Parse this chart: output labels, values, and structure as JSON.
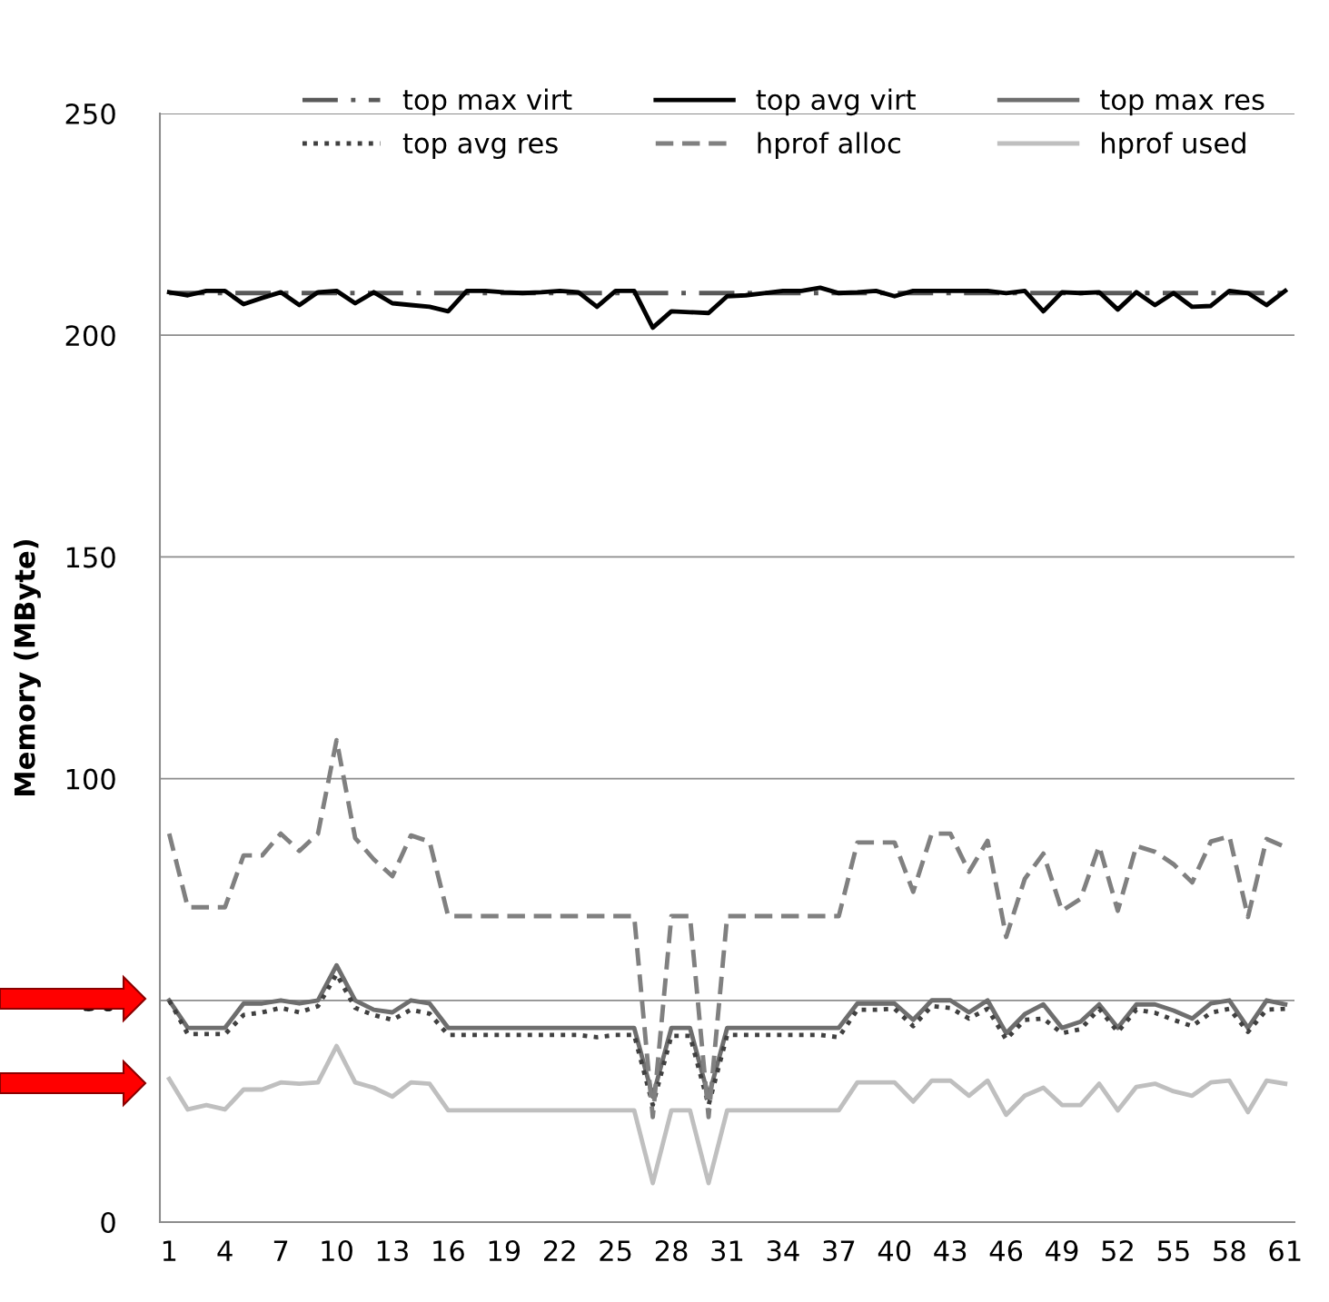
{
  "chart_data": {
    "type": "line",
    "ylabel": "Memory (MByte)",
    "categories": [
      "1",
      null,
      null,
      "4",
      null,
      null,
      "7",
      null,
      null,
      "10",
      null,
      null,
      "13",
      null,
      null,
      "16",
      null,
      null,
      "19",
      null,
      null,
      "22",
      null,
      null,
      "25",
      null,
      null,
      "28",
      null,
      null,
      "31",
      null,
      null,
      "34",
      null,
      null,
      "37",
      null,
      null,
      "40",
      null,
      null,
      "43",
      null,
      null,
      "46",
      null,
      null,
      "49",
      null,
      null,
      "52",
      null,
      null,
      "55",
      null,
      null,
      "58",
      null,
      null,
      "61"
    ],
    "ylim": [
      0,
      250
    ],
    "yticks": [
      0,
      50,
      100,
      150,
      200,
      250
    ],
    "grid": "y",
    "legend": "top",
    "series": [
      {
        "name": "top max virt",
        "color": "#595959",
        "line_style": "dashdot",
        "values": [
          209.5,
          209.5,
          209.5,
          209.5,
          209.5,
          209.5,
          209.5,
          209.5,
          209.5,
          209.5,
          209.5,
          209.5,
          209.5,
          209.5,
          209.5,
          209.5,
          209.5,
          209.5,
          209.5,
          209.5,
          209.5,
          209.5,
          209.5,
          209.5,
          209.5,
          209.5,
          209.5,
          209.5,
          209.5,
          209.5,
          209.5,
          209.5,
          209.5,
          209.5,
          209.5,
          209.5,
          209.5,
          209.5,
          209.5,
          209.5,
          209.5,
          209.5,
          209.5,
          209.5,
          209.5,
          209.5,
          209.5,
          209.5,
          209.5,
          209.5,
          209.5,
          209.5,
          209.5,
          209.5,
          209.5,
          209.5,
          209.5,
          209.5,
          209.5,
          209.5,
          209.5
        ]
      },
      {
        "name": "top avg virt",
        "color": "#000000",
        "line_style": "solid",
        "values": [
          209.7,
          209,
          210,
          210,
          207,
          208.4,
          209.7,
          206.8,
          209.7,
          210,
          207.2,
          209.7,
          207.2,
          206.8,
          206.4,
          205.4,
          210,
          210,
          209.7,
          209.5,
          209.7,
          210,
          209.7,
          206.4,
          210,
          210,
          201.7,
          205.4,
          205.2,
          205,
          208.8,
          209,
          209.5,
          210,
          210,
          210.7,
          209.5,
          209.7,
          210,
          208.8,
          210,
          210,
          210,
          210,
          210,
          209.5,
          210,
          205.4,
          209.7,
          209.5,
          209.7,
          205.8,
          209.7,
          206.8,
          209.5,
          206.4,
          206.6,
          210,
          209.5,
          206.8,
          210
        ]
      },
      {
        "name": "top max res",
        "color": "#6e6e6e",
        "line_style": "solid",
        "values": [
          50,
          43.8,
          43.8,
          43.8,
          49.3,
          49.3,
          50,
          49.3,
          50,
          57.9,
          50,
          47.9,
          47.3,
          50,
          49.3,
          43.8,
          43.8,
          43.8,
          43.8,
          43.8,
          43.8,
          43.8,
          43.8,
          43.8,
          43.8,
          43.8,
          28.3,
          43.8,
          43.8,
          28.3,
          43.8,
          43.8,
          43.8,
          43.8,
          43.8,
          43.8,
          43.8,
          49.3,
          49.3,
          49.3,
          45.6,
          50,
          50,
          47.3,
          50,
          42.6,
          46.9,
          49.1,
          43.8,
          45.2,
          49.1,
          43.8,
          49.1,
          49.1,
          47.7,
          45.9,
          49.3,
          50,
          43.8,
          50,
          49.1
        ]
      },
      {
        "name": "top avg res",
        "color": "#404040",
        "line_style": "dotted",
        "values": [
          50,
          42.4,
          42.4,
          42.4,
          46.7,
          47.3,
          48.3,
          47.3,
          48.7,
          55.9,
          48.3,
          46.7,
          45.6,
          47.9,
          47,
          42.2,
          42.2,
          42.2,
          42.2,
          42.2,
          42.2,
          42.2,
          42.2,
          41.7,
          42.2,
          42.2,
          26.4,
          42,
          42,
          26.4,
          42.2,
          42.2,
          42.2,
          42.2,
          42.2,
          42.2,
          41.7,
          47.9,
          47.9,
          48.1,
          44.2,
          48.7,
          48.3,
          45.9,
          48.1,
          41.2,
          45.6,
          45.9,
          42.6,
          43.5,
          48.1,
          42.9,
          47.9,
          47.2,
          45.6,
          44.2,
          47.2,
          48.1,
          42.9,
          47.9,
          48.1
        ]
      },
      {
        "name": "hprof alloc",
        "color": "#808080",
        "line_style": "dashed",
        "values": [
          87.6,
          71,
          71,
          71,
          82.7,
          82.7,
          87.6,
          83.7,
          87.6,
          108.7,
          86.6,
          81.8,
          78,
          87.2,
          85.8,
          69,
          69,
          69,
          69,
          69,
          69,
          69,
          69,
          69,
          69,
          69,
          23.7,
          69,
          69,
          23.7,
          69,
          69,
          69,
          69,
          69,
          69,
          69,
          85.6,
          85.6,
          85.6,
          74.5,
          87.6,
          87.6,
          79,
          86,
          64.3,
          77.4,
          83.1,
          70.2,
          72.9,
          84.8,
          70.2,
          84.8,
          83.5,
          80.7,
          76.6,
          85.8,
          87,
          68.8,
          86.4,
          84.6
        ]
      },
      {
        "name": "hprof used",
        "color": "#bfbfbf",
        "line_style": "solid",
        "values": [
          32.3,
          25.4,
          26.4,
          25.4,
          29.9,
          29.9,
          31.5,
          31.2,
          31.5,
          39.7,
          31.5,
          30.3,
          28.3,
          31.5,
          31.2,
          25.2,
          25.2,
          25.2,
          25.2,
          25.2,
          25.2,
          25.2,
          25.2,
          25.2,
          25.2,
          25.2,
          8.8,
          25.2,
          25.2,
          8.8,
          25.2,
          25.2,
          25.2,
          25.2,
          25.2,
          25.2,
          25.2,
          31.5,
          31.5,
          31.5,
          27.2,
          31.9,
          31.9,
          28.5,
          31.9,
          24.2,
          28.5,
          30.3,
          26.4,
          26.4,
          31.2,
          25.2,
          30.5,
          31.2,
          29.5,
          28.5,
          31.5,
          31.9,
          24.8,
          31.9,
          31.2
        ]
      }
    ]
  }
}
